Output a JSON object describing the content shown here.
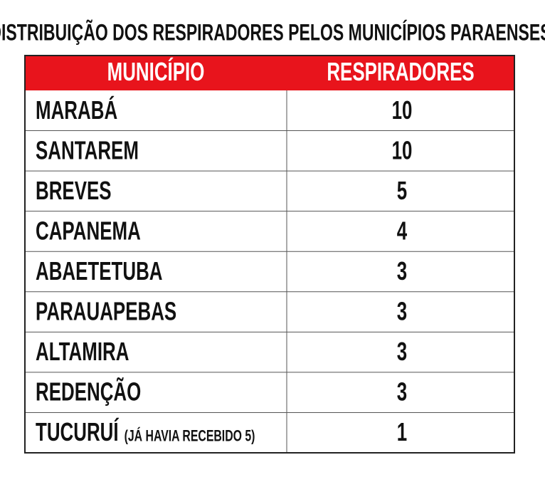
{
  "title": "DISTRIBUIÇÃO DOS RESPIRADORES PELOS MUNICÍPIOS PARAENSES",
  "table": {
    "header": [
      "MUNICÍPIO",
      "RESPIRADORES"
    ],
    "rows": [
      {
        "municipio": "MARABÁ",
        "respiradores": 10
      },
      {
        "municipio": "SANTAREM",
        "respiradores": 10
      },
      {
        "municipio": "BREVES",
        "respiradores": 5
      },
      {
        "municipio": "CAPANEMA",
        "respiradores": 4
      },
      {
        "municipio": "ABAETETUBA",
        "respiradores": 3
      },
      {
        "municipio": "PARAUAPEBAS",
        "respiradores": 3
      },
      {
        "municipio": "ALTAMIRA",
        "respiradores": 3
      },
      {
        "municipio": "REDENÇÃO",
        "respiradores": 3
      },
      {
        "municipio": "TUCURUÍ",
        "note": "(JÁ HAVIA RECEBIDO 5)",
        "respiradores": 1
      }
    ]
  }
}
